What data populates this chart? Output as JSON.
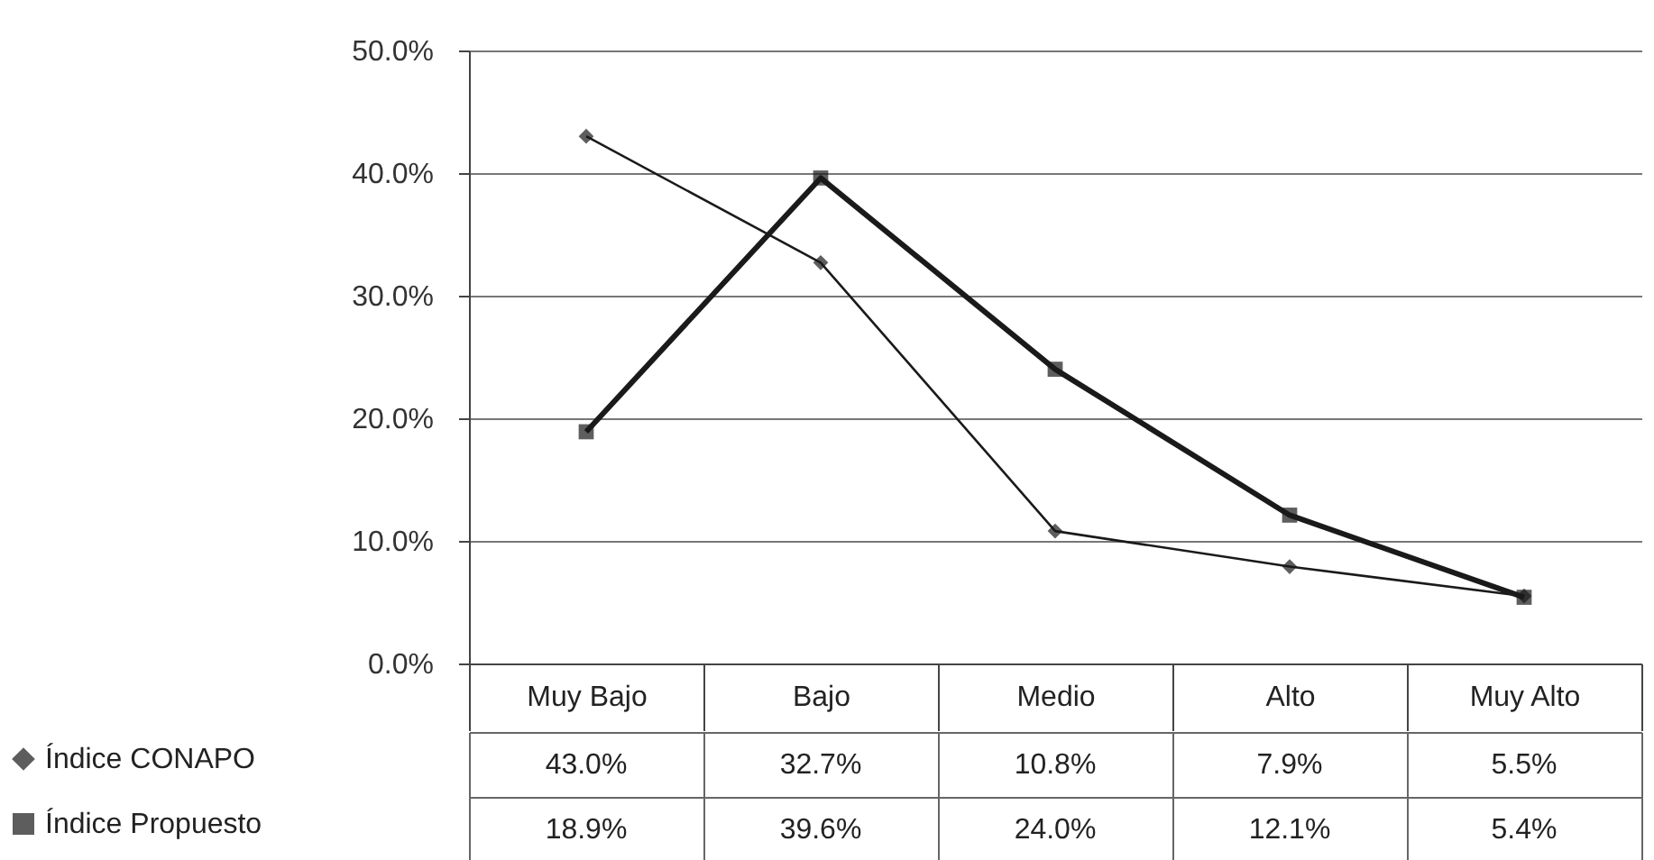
{
  "chart_data": {
    "type": "line",
    "categories": [
      "Muy Bajo",
      "Bajo",
      "Medio",
      "Alto",
      "Muy Alto"
    ],
    "series": [
      {
        "name": "Índice CONAPO",
        "color": "#1a1a1a",
        "marker": "diamond",
        "values": [
          43.0,
          32.7,
          10.8,
          7.9,
          5.5
        ],
        "value_labels": [
          "43.0%",
          "32.7%",
          "10.8%",
          "7.9%",
          "5.5%"
        ]
      },
      {
        "name": "Índice Propuesto",
        "color": "#1a1a1a",
        "marker": "square",
        "values": [
          18.9,
          39.6,
          24.0,
          12.1,
          5.4
        ],
        "value_labels": [
          "18.9%",
          "39.6%",
          "24.0%",
          "12.1%",
          "5.4%"
        ]
      }
    ],
    "ylim": [
      0,
      50
    ],
    "yticks": [
      {
        "value": 0,
        "label": "0.0%"
      },
      {
        "value": 10,
        "label": "10.0%"
      },
      {
        "value": 20,
        "label": "20.0%"
      },
      {
        "value": 30,
        "label": "30.0%"
      },
      {
        "value": 40,
        "label": "40.0%"
      },
      {
        "value": 50,
        "label": "50.0%"
      }
    ],
    "grid": "y",
    "legend": "bottom left"
  }
}
